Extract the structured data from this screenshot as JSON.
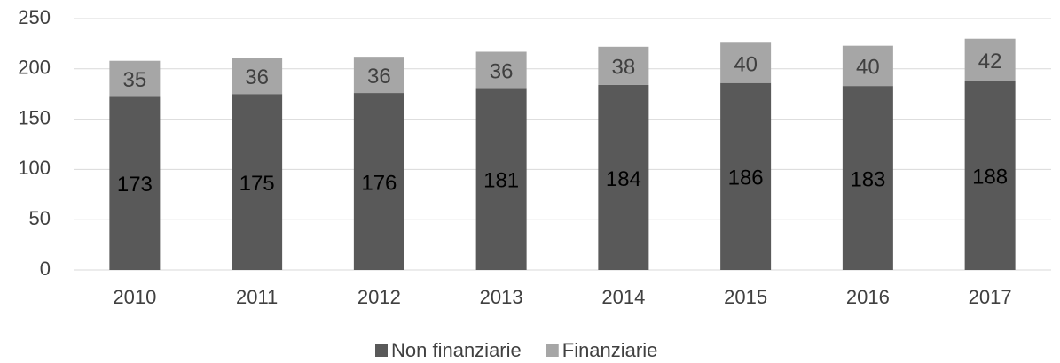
{
  "chart_data": {
    "type": "stacked_bar",
    "categories": [
      "2010",
      "2011",
      "2012",
      "2013",
      "2014",
      "2015",
      "2016",
      "2017"
    ],
    "series": [
      {
        "name": "Non finanziarie",
        "color": "#595959",
        "values": [
          173,
          175,
          176,
          181,
          184,
          186,
          183,
          188
        ]
      },
      {
        "name": "Finanziarie",
        "color": "#a6a6a6",
        "values": [
          35,
          36,
          36,
          36,
          38,
          40,
          40,
          42
        ]
      }
    ],
    "ylim": [
      0,
      250
    ],
    "yticks": [
      0,
      50,
      100,
      150,
      200,
      250
    ],
    "grid": true,
    "legend": "bottom"
  }
}
